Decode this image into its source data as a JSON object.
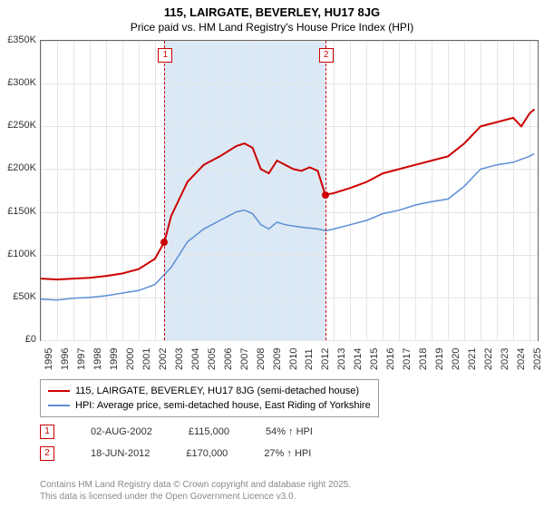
{
  "title": "115, LAIRGATE, BEVERLEY, HU17 8JG",
  "subtitle": "Price paid vs. HM Land Registry's House Price Index (HPI)",
  "chart": {
    "type": "line",
    "background": "#ffffff",
    "plot_border": "#666666",
    "grid_color": "#e5e5e5",
    "highlight_fill": "#dbe9f6",
    "highlight_range": [
      2002.59,
      2012.46
    ],
    "xlim": [
      1995,
      2025.5
    ],
    "ylim": [
      0,
      350000
    ],
    "yticks": [
      0,
      50000,
      100000,
      150000,
      200000,
      250000,
      300000,
      350000
    ],
    "ytick_labels": [
      "£0",
      "£50K",
      "£100K",
      "£150K",
      "£200K",
      "£250K",
      "£300K",
      "£350K"
    ],
    "xticks": [
      1995,
      1996,
      1997,
      1998,
      1999,
      2000,
      2001,
      2002,
      2003,
      2004,
      2005,
      2006,
      2007,
      2008,
      2009,
      2010,
      2011,
      2012,
      2013,
      2014,
      2015,
      2016,
      2017,
      2018,
      2019,
      2020,
      2021,
      2022,
      2023,
      2024,
      2025
    ],
    "label_fontsize": 11,
    "title_fontsize": 13,
    "series": [
      {
        "name": "price_paid",
        "color": "#cc0000",
        "width": 2,
        "points": [
          [
            1995,
            72000
          ],
          [
            1996,
            71000
          ],
          [
            1997,
            72000
          ],
          [
            1998,
            73000
          ],
          [
            1999,
            75000
          ],
          [
            2000,
            78000
          ],
          [
            2001,
            83000
          ],
          [
            2002,
            95000
          ],
          [
            2002.59,
            115000
          ],
          [
            2003,
            145000
          ],
          [
            2004,
            185000
          ],
          [
            2005,
            205000
          ],
          [
            2006,
            215000
          ],
          [
            2007,
            227000
          ],
          [
            2007.5,
            230000
          ],
          [
            2008,
            225000
          ],
          [
            2008.5,
            200000
          ],
          [
            2009,
            195000
          ],
          [
            2009.5,
            210000
          ],
          [
            2010,
            205000
          ],
          [
            2010.5,
            200000
          ],
          [
            2011,
            198000
          ],
          [
            2011.5,
            202000
          ],
          [
            2012,
            198000
          ],
          [
            2012.46,
            170000
          ],
          [
            2013,
            172000
          ],
          [
            2014,
            178000
          ],
          [
            2015,
            185000
          ],
          [
            2016,
            195000
          ],
          [
            2017,
            200000
          ],
          [
            2018,
            205000
          ],
          [
            2019,
            210000
          ],
          [
            2020,
            215000
          ],
          [
            2021,
            230000
          ],
          [
            2022,
            250000
          ],
          [
            2023,
            255000
          ],
          [
            2024,
            260000
          ],
          [
            2024.5,
            250000
          ],
          [
            2025,
            265000
          ],
          [
            2025.3,
            270000
          ]
        ]
      },
      {
        "name": "hpi",
        "color": "#5b8fd6",
        "width": 1.5,
        "points": [
          [
            1995,
            48000
          ],
          [
            1996,
            47000
          ],
          [
            1997,
            49000
          ],
          [
            1998,
            50000
          ],
          [
            1999,
            52000
          ],
          [
            2000,
            55000
          ],
          [
            2001,
            58000
          ],
          [
            2002,
            65000
          ],
          [
            2003,
            85000
          ],
          [
            2004,
            115000
          ],
          [
            2005,
            130000
          ],
          [
            2006,
            140000
          ],
          [
            2007,
            150000
          ],
          [
            2007.5,
            152000
          ],
          [
            2008,
            148000
          ],
          [
            2008.5,
            135000
          ],
          [
            2009,
            130000
          ],
          [
            2009.5,
            138000
          ],
          [
            2010,
            135000
          ],
          [
            2011,
            132000
          ],
          [
            2012,
            130000
          ],
          [
            2012.5,
            128000
          ],
          [
            2013,
            130000
          ],
          [
            2014,
            135000
          ],
          [
            2015,
            140000
          ],
          [
            2016,
            148000
          ],
          [
            2017,
            152000
          ],
          [
            2018,
            158000
          ],
          [
            2019,
            162000
          ],
          [
            2020,
            165000
          ],
          [
            2021,
            180000
          ],
          [
            2022,
            200000
          ],
          [
            2023,
            205000
          ],
          [
            2024,
            208000
          ],
          [
            2025,
            215000
          ],
          [
            2025.3,
            218000
          ]
        ]
      }
    ],
    "markers": [
      {
        "id": "1",
        "x": 2002.59,
        "y": 115000
      },
      {
        "id": "2",
        "x": 2012.46,
        "y": 170000
      }
    ]
  },
  "legend": {
    "series1_color": "#cc0000",
    "series1_label": "115, LAIRGATE, BEVERLEY, HU17 8JG (semi-detached house)",
    "series2_color": "#5b8fd6",
    "series2_label": "HPI: Average price, semi-detached house, East Riding of Yorkshire"
  },
  "sales": [
    {
      "id": "1",
      "date": "02-AUG-2002",
      "price": "£115,000",
      "delta": "54% ↑ HPI"
    },
    {
      "id": "2",
      "date": "18-JUN-2012",
      "price": "£170,000",
      "delta": "27% ↑ HPI"
    }
  ],
  "footer_line1": "Contains HM Land Registry data © Crown copyright and database right 2025.",
  "footer_line2": "This data is licensed under the Open Government Licence v3.0."
}
